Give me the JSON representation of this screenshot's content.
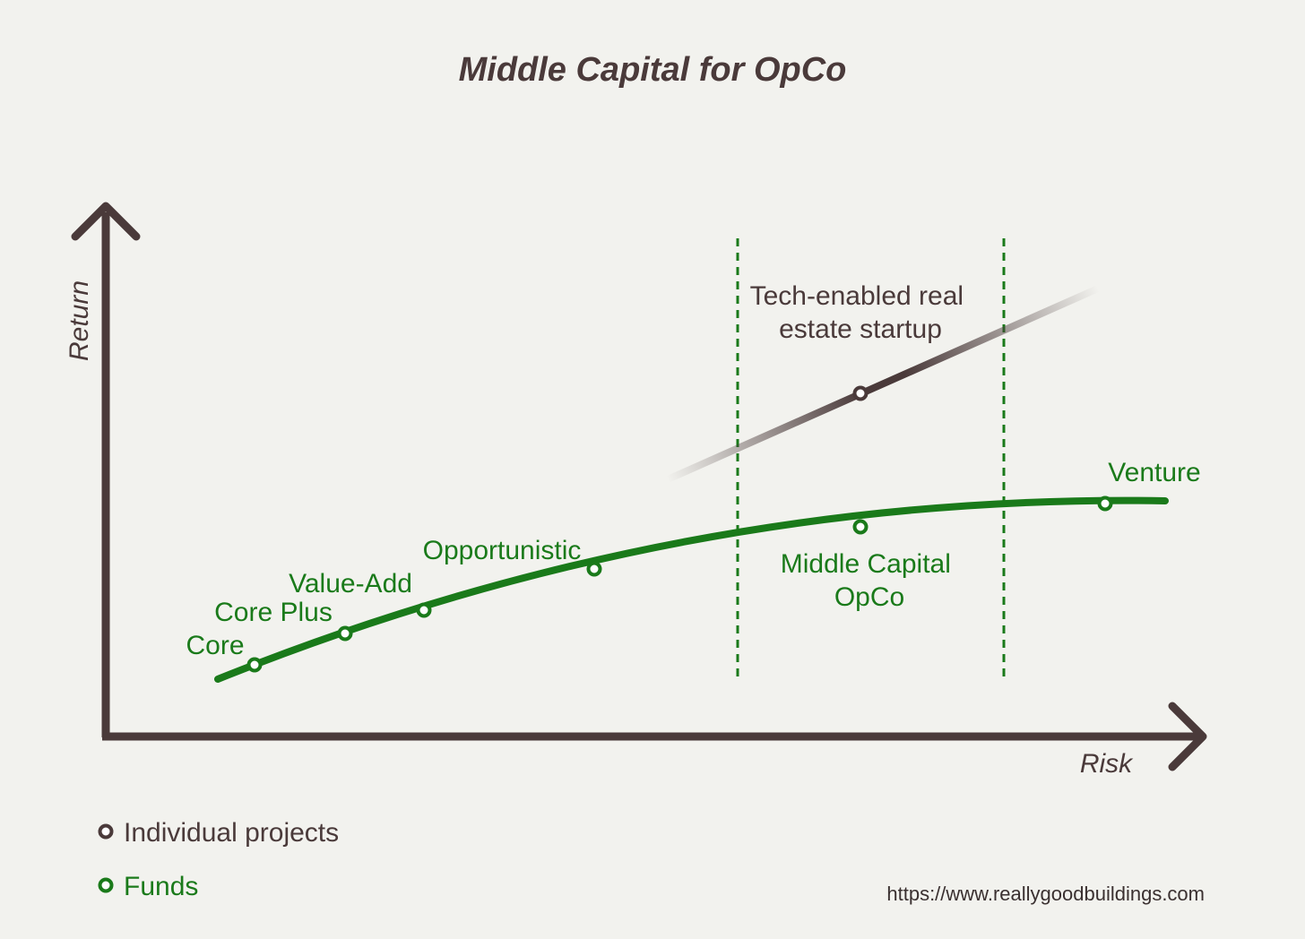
{
  "title": "Middle Capital for OpCo",
  "axes": {
    "x_label": "Risk",
    "y_label": "Return"
  },
  "colors": {
    "funds": "#1a7a1a",
    "projects": "#4a3a3a",
    "axis": "#4a3a3a",
    "background": "#f2f2ee"
  },
  "funds": {
    "points": [
      {
        "label": "Core"
      },
      {
        "label": "Core Plus"
      },
      {
        "label": "Value-Add"
      },
      {
        "label": "Opportunistic"
      },
      {
        "label": "Middle Capital\nOpCo"
      },
      {
        "label": "Venture"
      }
    ]
  },
  "projects": {
    "points": [
      {
        "label": "Tech-enabled real\nestate startup"
      }
    ]
  },
  "legend": [
    {
      "label": "Individual projects",
      "color": "#4a3a3a"
    },
    {
      "label": "Funds",
      "color": "#1a7a1a"
    }
  ],
  "source_url": "https://www.reallygoodbuildings.com"
}
